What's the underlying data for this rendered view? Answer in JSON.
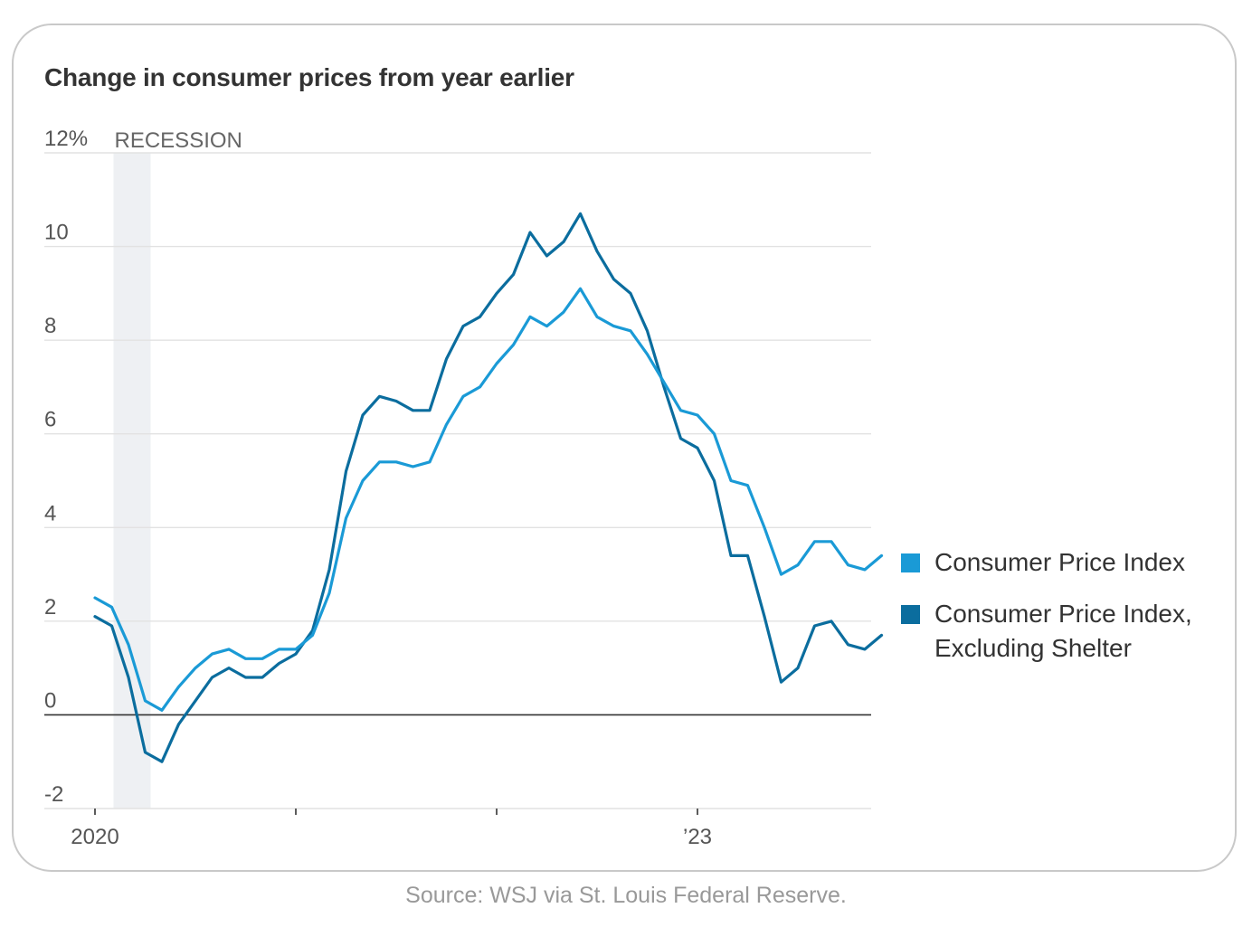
{
  "source": "Source: WSJ via St. Louis Federal Reserve.",
  "chart_data": {
    "type": "line",
    "title": "Change in consumer prices from year earlier",
    "xlabel": "",
    "ylabel": "",
    "ylim": [
      -2,
      12
    ],
    "y_ticks": [
      {
        "value": 12,
        "label": "12%"
      },
      {
        "value": 10,
        "label": "10"
      },
      {
        "value": 8,
        "label": "8"
      },
      {
        "value": 6,
        "label": "6"
      },
      {
        "value": 4,
        "label": "4"
      },
      {
        "value": 2,
        "label": "2"
      },
      {
        "value": 0,
        "label": "0"
      },
      {
        "value": -2,
        "label": "-2"
      }
    ],
    "x_ticks": [
      {
        "value": "2020-01",
        "label": "2020"
      },
      {
        "value": "2021-01",
        "label": ""
      },
      {
        "value": "2022-01",
        "label": ""
      },
      {
        "value": "2023-01",
        "label": "’23"
      }
    ],
    "x_start": "2020-01",
    "x_end": "2024-01",
    "grid": true,
    "legend_position": "right",
    "recession": {
      "label": "RECESSION",
      "start": "2020-02",
      "end": "2020-04"
    },
    "x": [
      "2020-01",
      "2020-02",
      "2020-03",
      "2020-04",
      "2020-05",
      "2020-06",
      "2020-07",
      "2020-08",
      "2020-09",
      "2020-10",
      "2020-11",
      "2020-12",
      "2021-01",
      "2021-02",
      "2021-03",
      "2021-04",
      "2021-05",
      "2021-06",
      "2021-07",
      "2021-08",
      "2021-09",
      "2021-10",
      "2021-11",
      "2021-12",
      "2022-01",
      "2022-02",
      "2022-03",
      "2022-04",
      "2022-05",
      "2022-06",
      "2022-07",
      "2022-08",
      "2022-09",
      "2022-10",
      "2022-11",
      "2022-12",
      "2023-01",
      "2023-02",
      "2023-03",
      "2023-04",
      "2023-05",
      "2023-06",
      "2023-07",
      "2023-08",
      "2023-09",
      "2023-10",
      "2023-11",
      "2023-12"
    ],
    "series": [
      {
        "name": "Consumer Price Index",
        "color": "#1a9ad6",
        "values": [
          2.5,
          2.3,
          1.5,
          0.3,
          0.1,
          0.6,
          1.0,
          1.3,
          1.4,
          1.2,
          1.2,
          1.4,
          1.4,
          1.7,
          2.6,
          4.2,
          5.0,
          5.4,
          5.4,
          5.3,
          5.4,
          6.2,
          6.8,
          7.0,
          7.5,
          7.9,
          8.5,
          8.3,
          8.6,
          9.1,
          8.5,
          8.3,
          8.2,
          7.7,
          7.1,
          6.5,
          6.4,
          6.0,
          5.0,
          4.9,
          4.0,
          3.0,
          3.2,
          3.7,
          3.7,
          3.2,
          3.1,
          3.4
        ]
      },
      {
        "name": "Consumer Price Index, Excluding Shelter",
        "color": "#0b6d9e",
        "values": [
          2.1,
          1.9,
          0.8,
          -0.8,
          -1.0,
          -0.2,
          0.3,
          0.8,
          1.0,
          0.8,
          0.8,
          1.1,
          1.3,
          1.8,
          3.1,
          5.2,
          6.4,
          6.8,
          6.7,
          6.5,
          6.5,
          7.6,
          8.3,
          8.5,
          9.0,
          9.4,
          10.3,
          9.8,
          10.1,
          10.7,
          9.9,
          9.3,
          9.0,
          8.2,
          7.0,
          5.9,
          5.7,
          5.0,
          3.4,
          3.4,
          2.1,
          0.7,
          1.0,
          1.9,
          2.0,
          1.5,
          1.4,
          1.7
        ]
      }
    ]
  }
}
